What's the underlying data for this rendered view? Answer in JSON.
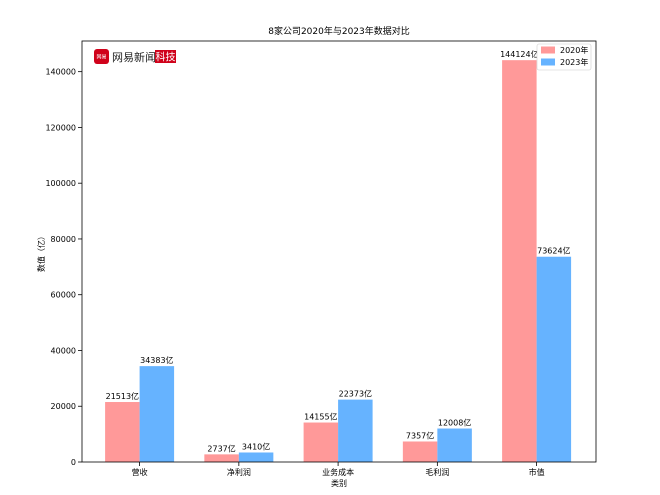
{
  "chart_data": {
    "type": "bar",
    "title": "8家公司2020年与2023年数据对比",
    "xlabel": "类别",
    "ylabel": "数值（亿）",
    "categories": [
      "营收",
      "净利润",
      "业务成本",
      "毛利润",
      "市值"
    ],
    "series": [
      {
        "name": "2020年",
        "values": [
          21513,
          2737,
          14155,
          7357,
          144124
        ],
        "labels": [
          "21513亿",
          "2737亿",
          "14155亿",
          "7357亿",
          "144124亿"
        ],
        "color": "#ff9999"
      },
      {
        "name": "2023年",
        "values": [
          34383,
          3410,
          22373,
          12008,
          73624
        ],
        "labels": [
          "34383亿",
          "3410亿",
          "22373亿",
          "12008亿",
          "73624亿"
        ],
        "color": "#66b3ff"
      }
    ],
    "ylim": [
      0,
      151000
    ],
    "yticks": [
      0,
      20000,
      40000,
      60000,
      80000,
      100000,
      120000,
      140000
    ],
    "grid": false,
    "legend_position": "top-right"
  },
  "watermark": {
    "name": "网易新闻",
    "tag": "科技",
    "mark": "网易",
    "mark_color": "#d0021b"
  }
}
